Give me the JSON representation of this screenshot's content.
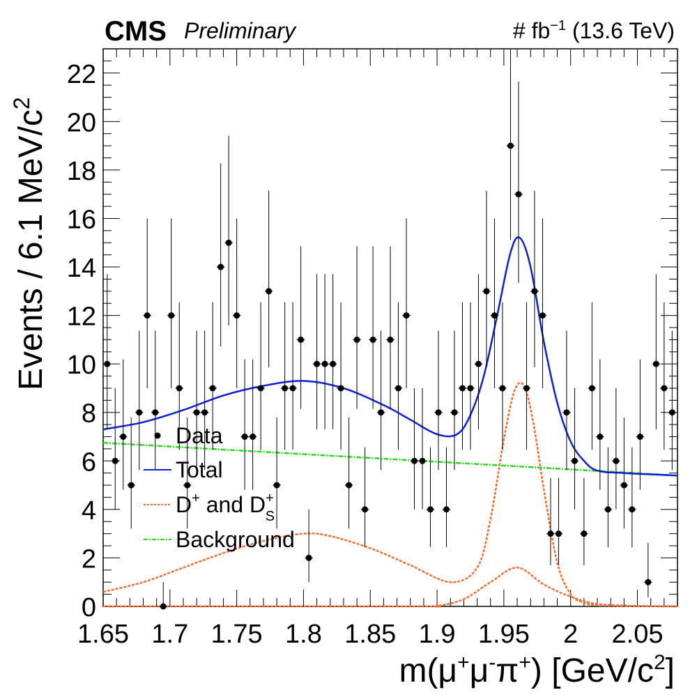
{
  "header": {
    "experiment": "CMS",
    "status": "Preliminary",
    "lumi_prefix": "# fb",
    "lumi_exponent": "−1",
    "energy": "(13.6 TeV)"
  },
  "axes": {
    "ylabel_main": "Events / 6.1 MeV/c",
    "ylabel_sup": "2",
    "xlabel_main": "m(μ",
    "xlabel_sup1": "+",
    "xlabel_mid1": "μ",
    "xlabel_sup2": "-",
    "xlabel_mid2": "π",
    "xlabel_sup3": "+",
    "xlabel_unit": ") [GeV/c",
    "xlabel_sup4": "2",
    "xlabel_end": "]"
  },
  "legend": {
    "data": "Data",
    "total": "Total",
    "signal_main": "D",
    "signal_sup1": "+",
    "signal_mid": " and D",
    "signal_sub": "S",
    "signal_sup2": "+",
    "background": "Background"
  },
  "colors": {
    "total": "#0a1ee0",
    "signal": "#ff6a2a",
    "background": "#22dd11",
    "data": "#000000"
  },
  "chart_data": {
    "type": "scatter",
    "xlim": [
      1.65,
      2.08
    ],
    "ylim": [
      0,
      23
    ],
    "x_ticks": [
      1.65,
      1.7,
      1.75,
      1.8,
      1.85,
      1.9,
      1.95,
      2.0,
      2.05
    ],
    "x_tick_labels": [
      "1.65",
      "1.7",
      "1.75",
      "1.8",
      "1.85",
      "1.9",
      "1.95",
      "2",
      "2.05"
    ],
    "y_ticks": [
      0,
      2,
      4,
      6,
      8,
      10,
      12,
      14,
      16,
      18,
      20,
      22
    ],
    "y_tick_labels": [
      "0",
      "2",
      "4",
      "6",
      "8",
      "10",
      "12",
      "14",
      "16",
      "18",
      "20",
      "22"
    ],
    "bin_width": 0.0061,
    "data_x": [
      1.653,
      1.659,
      1.665,
      1.671,
      1.677,
      1.683,
      1.689,
      1.695,
      1.701,
      1.707,
      1.713,
      1.72,
      1.726,
      1.732,
      1.738,
      1.744,
      1.75,
      1.756,
      1.762,
      1.768,
      1.774,
      1.78,
      1.786,
      1.792,
      1.798,
      1.804,
      1.81,
      1.816,
      1.822,
      1.828,
      1.834,
      1.84,
      1.846,
      1.852,
      1.858,
      1.865,
      1.871,
      1.877,
      1.883,
      1.889,
      1.895,
      1.901,
      1.907,
      1.913,
      1.919,
      1.925,
      1.931,
      1.937,
      1.943,
      1.949,
      1.955,
      1.961,
      1.967,
      1.973,
      1.979,
      1.985,
      1.991,
      1.997,
      2.003,
      2.01,
      2.016,
      2.022,
      2.028,
      2.034,
      2.04,
      2.046,
      2.052,
      2.058,
      2.064,
      2.07,
      2.076
    ],
    "data_y": [
      10,
      6,
      7,
      5,
      8,
      12,
      8,
      0,
      12,
      9,
      5,
      8,
      8,
      9,
      14,
      15,
      12,
      7,
      7,
      9,
      13,
      5,
      9,
      9,
      11,
      2,
      10,
      10,
      10,
      9,
      5,
      11,
      4,
      11,
      8,
      11,
      9,
      12,
      6,
      6,
      4,
      8,
      4,
      8,
      9,
      9,
      10,
      13,
      12,
      9,
      19,
      17,
      9,
      13,
      12,
      3,
      3,
      8,
      6,
      3,
      9,
      7,
      4,
      6,
      5,
      4,
      7,
      1,
      10,
      9,
      8
    ],
    "total": {
      "name": "Total",
      "x": [
        1.65,
        1.68,
        1.71,
        1.74,
        1.77,
        1.8,
        1.83,
        1.86,
        1.88,
        1.9,
        1.915,
        1.925,
        1.935,
        1.945,
        1.955,
        1.962,
        1.97,
        1.98,
        1.99,
        2.0,
        2.01,
        2.02,
        2.04,
        2.08
      ],
      "y": [
        7.3,
        7.6,
        8.1,
        8.7,
        9.1,
        9.3,
        9.0,
        8.3,
        7.7,
        7.1,
        7.1,
        7.9,
        9.5,
        12.0,
        14.6,
        15.2,
        14.0,
        10.9,
        8.4,
        6.8,
        6.0,
        5.6,
        5.5,
        5.4
      ]
    },
    "signal": {
      "name": "D+ and Ds+",
      "x": [
        1.65,
        1.68,
        1.71,
        1.74,
        1.77,
        1.8,
        1.82,
        1.85,
        1.88,
        1.91,
        1.93,
        1.94,
        1.95,
        1.958,
        1.965,
        1.972,
        1.98,
        1.99,
        2.0,
        2.01,
        2.02,
        2.04,
        2.08
      ],
      "y": [
        0.6,
        1.0,
        1.6,
        2.2,
        2.7,
        3.0,
        2.9,
        2.4,
        1.7,
        1.0,
        1.6,
        3.6,
        6.9,
        8.9,
        9.1,
        7.6,
        4.8,
        1.8,
        0.5,
        0.15,
        0.05,
        0.02,
        0.0
      ]
    },
    "signal_tail": {
      "name": "D+ and Ds+",
      "x": [
        1.65,
        1.88,
        1.9,
        1.92,
        1.94,
        1.96,
        1.98,
        2.0,
        2.02,
        2.05,
        2.08
      ],
      "y": [
        0.0,
        0.0,
        0.02,
        0.3,
        1.0,
        1.6,
        0.9,
        0.4,
        0.1,
        0.02,
        0.0
      ]
    },
    "background": {
      "name": "Background",
      "x": [
        1.65,
        2.08
      ],
      "y": [
        6.75,
        5.4
      ]
    }
  }
}
